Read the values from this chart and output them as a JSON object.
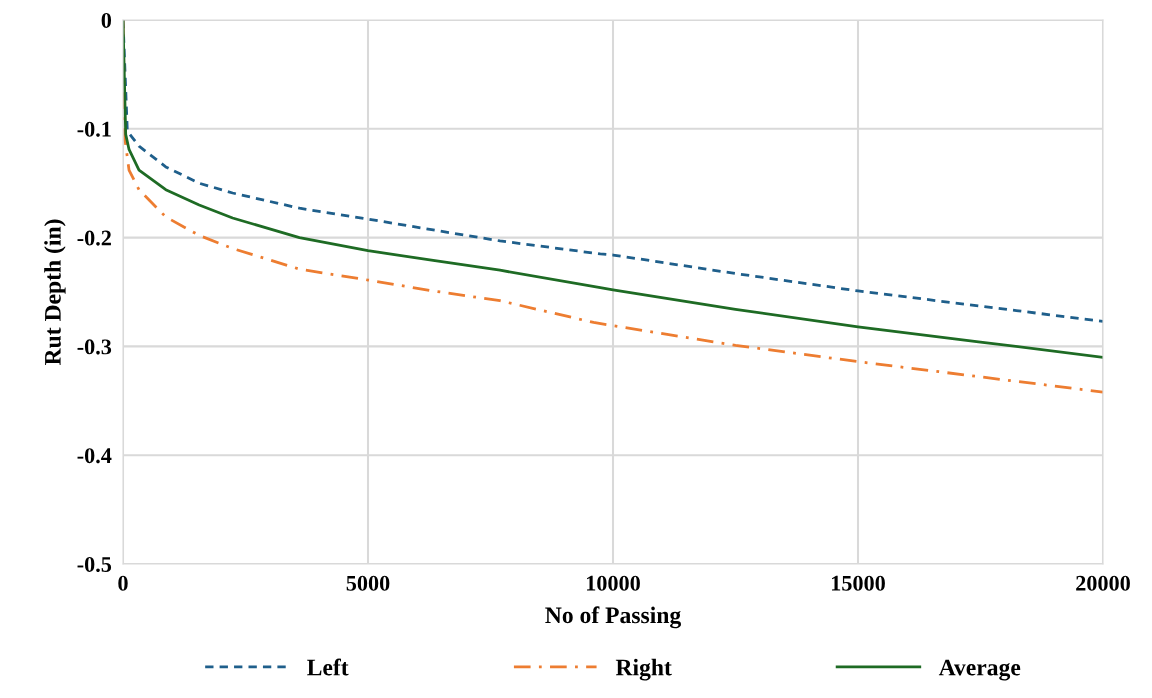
{
  "chart_data": {
    "type": "line",
    "xlabel": "No of Passing",
    "ylabel": "Rut Depth (in)",
    "xlim": [
      0,
      20000
    ],
    "xticks": [
      0,
      5000,
      10000,
      15000,
      20000
    ],
    "ylim": [
      -0.5,
      0
    ],
    "yticks": [
      -0.5,
      -0.4,
      -0.3,
      -0.2,
      -0.1,
      0
    ],
    "grid": true,
    "legend": "bottom",
    "marker": "none",
    "series": [
      {
        "name": "Left",
        "color": "#1f5f8b",
        "line_style": "dashed",
        "x": [
          0,
          88,
          327,
          873,
          1555,
          2237,
          3601,
          5000,
          6330,
          7694,
          9740,
          10000,
          12500,
          15000,
          17500,
          20000
        ],
        "values": [
          0,
          -0.102,
          -0.116,
          -0.135,
          -0.15,
          -0.159,
          -0.173,
          -0.183,
          -0.193,
          -0.203,
          -0.215,
          -0.216,
          -0.233,
          -0.249,
          -0.263,
          -0.277
        ]
      },
      {
        "name": "Right",
        "color": "#ed7d31",
        "line_style": "dashdot",
        "x": [
          0,
          41,
          123,
          327,
          873,
          1555,
          2237,
          3601,
          5000,
          6330,
          7694,
          9604,
          10000,
          12500,
          15000,
          17500,
          20000
        ],
        "values": [
          0,
          -0.11,
          -0.138,
          -0.156,
          -0.181,
          -0.198,
          -0.21,
          -0.229,
          -0.239,
          -0.249,
          -0.258,
          -0.278,
          -0.281,
          -0.299,
          -0.314,
          -0.328,
          -0.342
        ]
      },
      {
        "name": "Average",
        "color": "#1e6b24",
        "line_style": "solid",
        "x": [
          0,
          55,
          123,
          327,
          873,
          1555,
          2237,
          3601,
          5000,
          6330,
          7694,
          9740,
          10000,
          12500,
          15000,
          17500,
          20000
        ],
        "values": [
          0,
          -0.105,
          -0.119,
          -0.138,
          -0.156,
          -0.17,
          -0.182,
          -0.2,
          -0.212,
          -0.221,
          -0.23,
          -0.246,
          -0.248,
          -0.266,
          -0.282,
          -0.296,
          -0.31
        ]
      }
    ]
  }
}
